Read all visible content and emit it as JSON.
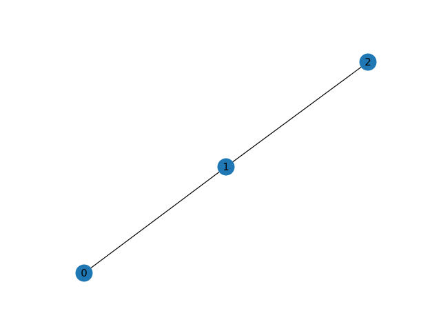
{
  "graph": {
    "node_color": "#1f77b4",
    "edge_color": "#000000",
    "nodes": [
      {
        "id": "0",
        "label": "0"
      },
      {
        "id": "1",
        "label": "1"
      },
      {
        "id": "2",
        "label": "2"
      }
    ],
    "edges": [
      {
        "source": "0",
        "target": "1"
      },
      {
        "source": "1",
        "target": "2"
      }
    ]
  }
}
